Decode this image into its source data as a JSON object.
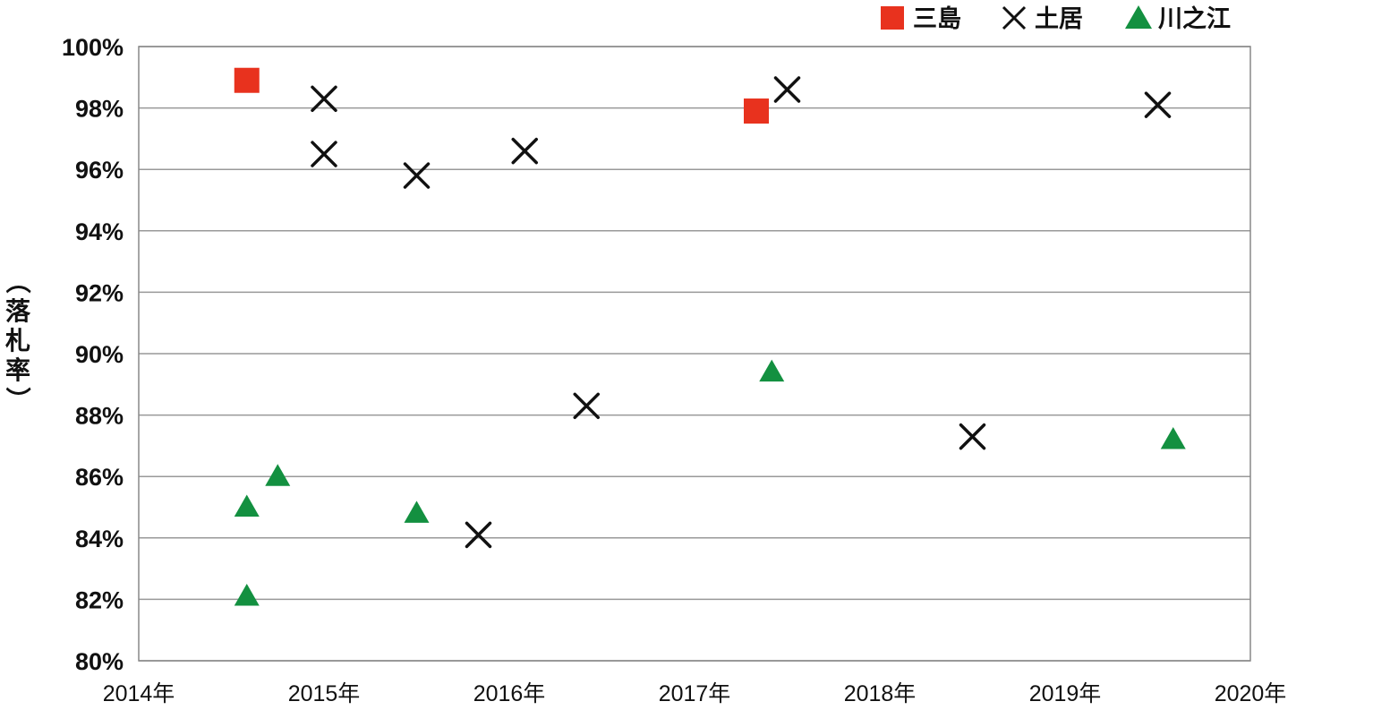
{
  "chart_data": {
    "type": "scatter",
    "ylabel": "（落札率）",
    "x_range": [
      "2014-01-01",
      "2020-01-01"
    ],
    "x_ticks": [
      "2014年",
      "2015年",
      "2016年",
      "2017年",
      "2018年",
      "2019年",
      "2020年"
    ],
    "ylim": [
      80,
      100
    ],
    "y_ticks": [
      "80%",
      "82%",
      "84%",
      "86%",
      "88%",
      "90%",
      "92%",
      "94%",
      "96%",
      "98%",
      "100%"
    ],
    "grid": true,
    "legend_position": "top-right",
    "series": [
      {
        "name": "三島",
        "marker": "square",
        "color": "#e8321e",
        "points": [
          {
            "x": "2014-08",
            "y": 98.9
          },
          {
            "x": "2017-05",
            "y": 97.9
          }
        ]
      },
      {
        "name": "土居",
        "marker": "x",
        "color": "#111111",
        "points": [
          {
            "x": "2015-01",
            "y": 98.3
          },
          {
            "x": "2015-01",
            "y": 96.5
          },
          {
            "x": "2015-07",
            "y": 95.8
          },
          {
            "x": "2015-11",
            "y": 84.1
          },
          {
            "x": "2016-02",
            "y": 96.6
          },
          {
            "x": "2016-06",
            "y": 88.3
          },
          {
            "x": "2017-07",
            "y": 98.6
          },
          {
            "x": "2018-07",
            "y": 87.3
          },
          {
            "x": "2019-07",
            "y": 98.1
          }
        ]
      },
      {
        "name": "川之江",
        "marker": "triangle",
        "color": "#139040",
        "points": [
          {
            "x": "2014-08",
            "y": 85.0
          },
          {
            "x": "2014-08",
            "y": 82.1
          },
          {
            "x": "2014-10",
            "y": 86.0
          },
          {
            "x": "2015-07",
            "y": 84.8
          },
          {
            "x": "2017-06",
            "y": 89.4
          },
          {
            "x": "2019-08",
            "y": 87.2
          }
        ]
      }
    ]
  }
}
